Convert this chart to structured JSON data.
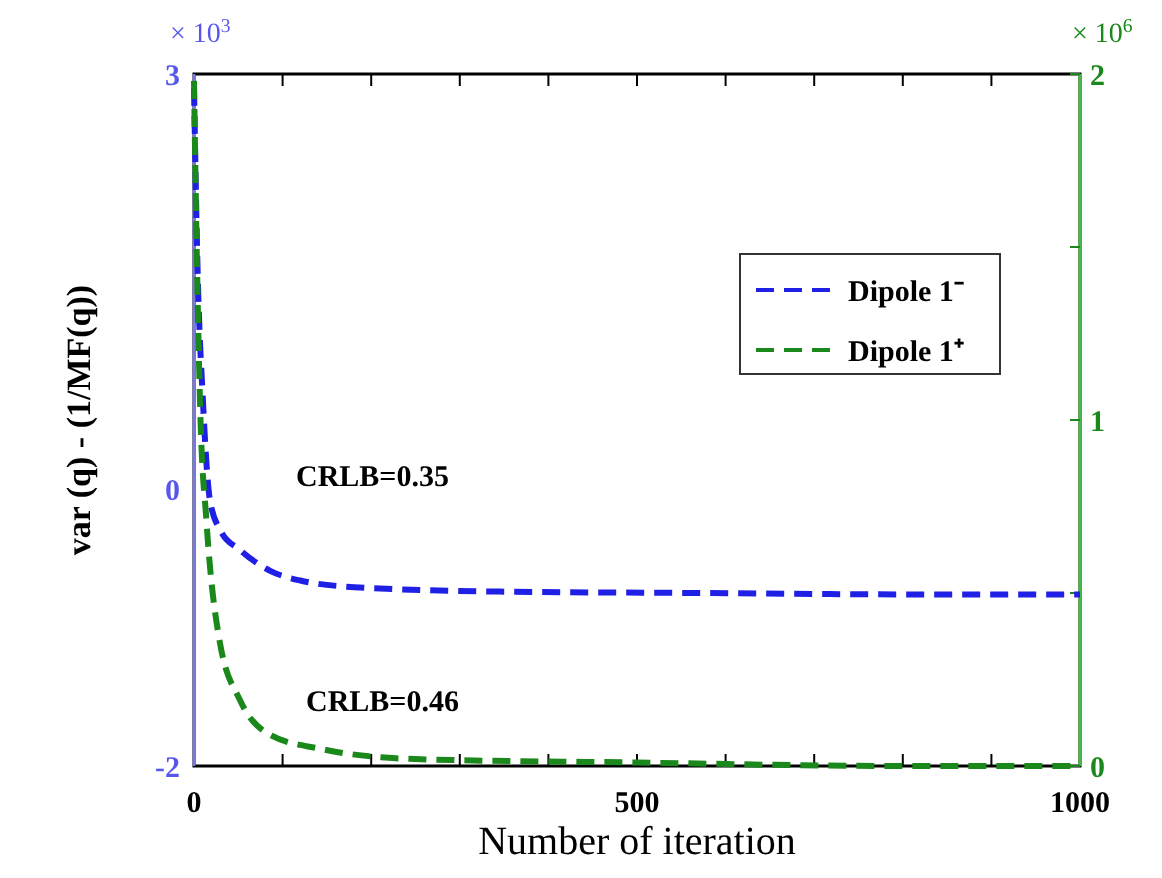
{
  "chart_data": {
    "type": "line",
    "xlabel": "Number of iteration",
    "ylabel": "var (q) - (1/MF(q))",
    "xlim": [
      0,
      1000
    ],
    "xticks": [
      0,
      {
        "value": 100,
        "label": null
      },
      {
        "value": 200,
        "label": null
      },
      {
        "value": 300,
        "label": null
      },
      {
        "value": 400,
        "label": null
      },
      500,
      {
        "value": 600,
        "label": null
      },
      {
        "value": 700,
        "label": null
      },
      {
        "value": 800,
        "label": null
      },
      {
        "value": 900,
        "label": null
      },
      1000
    ],
    "ylim": [
      -2,
      3
    ],
    "yticks": [
      -2,
      0,
      3
    ],
    "y2lim": [
      0,
      2
    ],
    "y2ticks": [
      0,
      {
        "value": 0.5,
        "label": null
      },
      1,
      {
        "value": 1.5,
        "label": null
      },
      2
    ],
    "legend": "top right",
    "line_style": "dashed",
    "grid": false,
    "series": [
      {
        "name": "Dipole 1⁻",
        "color": "#1f1fe6",
        "x": [
          0,
          4,
          10,
          18,
          30,
          52,
          86,
          120,
          187,
          345,
          571,
          800,
          1000
        ],
        "values": [
          2.9,
          1.6,
          0.65,
          -0.08,
          -0.3,
          -0.44,
          -0.59,
          -0.66,
          -0.71,
          -0.74,
          -0.75,
          -0.76,
          -0.76
        ]
      },
      {
        "name": "Dipole 1⁺",
        "color": "#1a881a",
        "axis": "y2",
        "x": [
          0,
          3,
          7,
          14,
          29,
          52,
          86,
          142,
          250,
          500,
          800,
          1000
        ],
        "values": [
          1.98,
          1.5,
          1.03,
          0.71,
          0.36,
          0.19,
          0.09,
          0.05,
          0.02,
          0.01,
          0.0,
          0.0
        ]
      }
    ],
    "annotations": [
      "× 10$^{3}$",
      "× 10$^{6}$",
      "CRLB=0.35",
      "CRLB=0.46"
    ]
  }
}
